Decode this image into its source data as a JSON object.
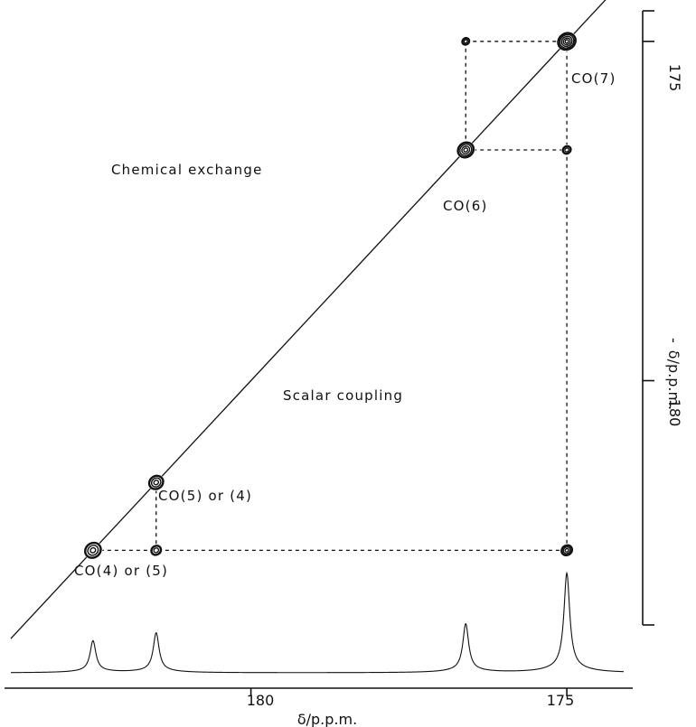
{
  "chart_data": {
    "type": "scatter",
    "title": "",
    "xlabel": "δ/p.p.m.",
    "ylabel": "δ/p.p.m.",
    "ylabel_prefix": "-",
    "xlim": [
      183.8,
      174.1
    ],
    "ylim": [
      174.55,
      183.6
    ],
    "x_ticks": [
      180,
      175
    ],
    "y_ticks": [
      175,
      180
    ],
    "region_labels": [
      {
        "text": "Chemical exchange",
        "name": "chemical-exchange-label"
      },
      {
        "text": "Scalar coupling",
        "name": "scalar-coupling-label"
      }
    ],
    "diagonal_peaks": [
      {
        "label": "CO(7)",
        "shift": 175.0
      },
      {
        "label": "CO(6)",
        "shift": 176.6
      },
      {
        "label": "CO(5) or (4)",
        "shift": 181.5
      },
      {
        "label": "CO(4) or (5)",
        "shift": 182.5
      }
    ],
    "cross_peaks": [
      {
        "x": 176.6,
        "y": 175.0
      },
      {
        "x": 175.0,
        "y": 176.6
      },
      {
        "x": 181.5,
        "y": 182.5
      },
      {
        "x": 175.0,
        "y": 182.5
      }
    ],
    "spectrum_peaks": [
      {
        "shift": 182.5,
        "height": 0.32
      },
      {
        "shift": 181.5,
        "height": 0.4
      },
      {
        "shift": 176.6,
        "height": 0.49
      },
      {
        "shift": 175.0,
        "height": 1.0
      }
    ],
    "connectors": [
      {
        "from": [
          176.6,
          175.0
        ],
        "to": [
          175.0,
          175.0
        ]
      },
      {
        "from": [
          176.6,
          176.6
        ],
        "to": [
          175.0,
          176.6
        ]
      },
      {
        "from": [
          176.6,
          175.0
        ],
        "to": [
          176.6,
          176.6
        ]
      },
      {
        "from": [
          175.0,
          175.0
        ],
        "to": [
          175.0,
          182.5
        ]
      },
      {
        "from": [
          182.5,
          182.5
        ],
        "to": [
          175.0,
          182.5
        ]
      },
      {
        "from": [
          181.5,
          181.5
        ],
        "to": [
          181.5,
          182.5
        ]
      }
    ]
  }
}
